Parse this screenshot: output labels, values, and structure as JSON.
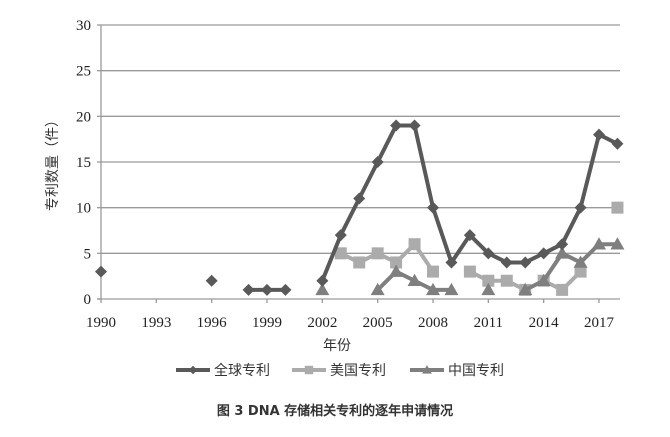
{
  "chart_data": {
    "type": "line",
    "title": "",
    "caption": "图 3   DNA 存储相关专利的逐年申请情况",
    "xlabel": "年份",
    "ylabel": "专利数量（件）",
    "ylim": [
      0,
      30
    ],
    "yticks": [
      0,
      5,
      10,
      15,
      20,
      25,
      30
    ],
    "xlim": [
      1990,
      2018
    ],
    "xticks": [
      1990,
      1993,
      1996,
      1999,
      2002,
      2005,
      2008,
      2011,
      2014,
      2017
    ],
    "grid": "horizontal",
    "legend_position": "bottom",
    "series": [
      {
        "name": "全球专利",
        "marker": "diamond",
        "color": "#595959",
        "points": [
          [
            1990,
            3
          ],
          [
            1996,
            2
          ],
          [
            1998,
            1
          ],
          [
            1999,
            1
          ],
          [
            2000,
            1
          ],
          [
            2002,
            2
          ],
          [
            2003,
            7
          ],
          [
            2004,
            11
          ],
          [
            2005,
            15
          ],
          [
            2006,
            19
          ],
          [
            2007,
            19
          ],
          [
            2008,
            10
          ],
          [
            2009,
            4
          ],
          [
            2010,
            7
          ],
          [
            2011,
            5
          ],
          [
            2012,
            4
          ],
          [
            2013,
            4
          ],
          [
            2014,
            5
          ],
          [
            2015,
            6
          ],
          [
            2016,
            10
          ],
          [
            2017,
            18
          ],
          [
            2018,
            17
          ]
        ]
      },
      {
        "name": "美国专利",
        "marker": "square",
        "color": "#ababab",
        "points": [
          [
            2003,
            5
          ],
          [
            2004,
            4
          ],
          [
            2005,
            5
          ],
          [
            2006,
            4
          ],
          [
            2007,
            6
          ],
          [
            2008,
            3
          ],
          [
            2010,
            3
          ],
          [
            2011,
            2
          ],
          [
            2012,
            2
          ],
          [
            2013,
            1
          ],
          [
            2014,
            2
          ],
          [
            2015,
            1
          ],
          [
            2016,
            3
          ],
          [
            2018,
            10
          ]
        ]
      },
      {
        "name": "中国专利",
        "marker": "triangle",
        "color": "#7f7f7f",
        "points": [
          [
            2002,
            1
          ],
          [
            2005,
            1
          ],
          [
            2006,
            3
          ],
          [
            2007,
            2
          ],
          [
            2008,
            1
          ],
          [
            2009,
            1
          ],
          [
            2011,
            1
          ],
          [
            2013,
            1
          ],
          [
            2014,
            2
          ],
          [
            2015,
            5
          ],
          [
            2016,
            4
          ],
          [
            2017,
            6
          ],
          [
            2018,
            6
          ]
        ]
      }
    ]
  },
  "figure": {
    "caption": "图 3   DNA 存储相关专利的逐年申请情况"
  }
}
